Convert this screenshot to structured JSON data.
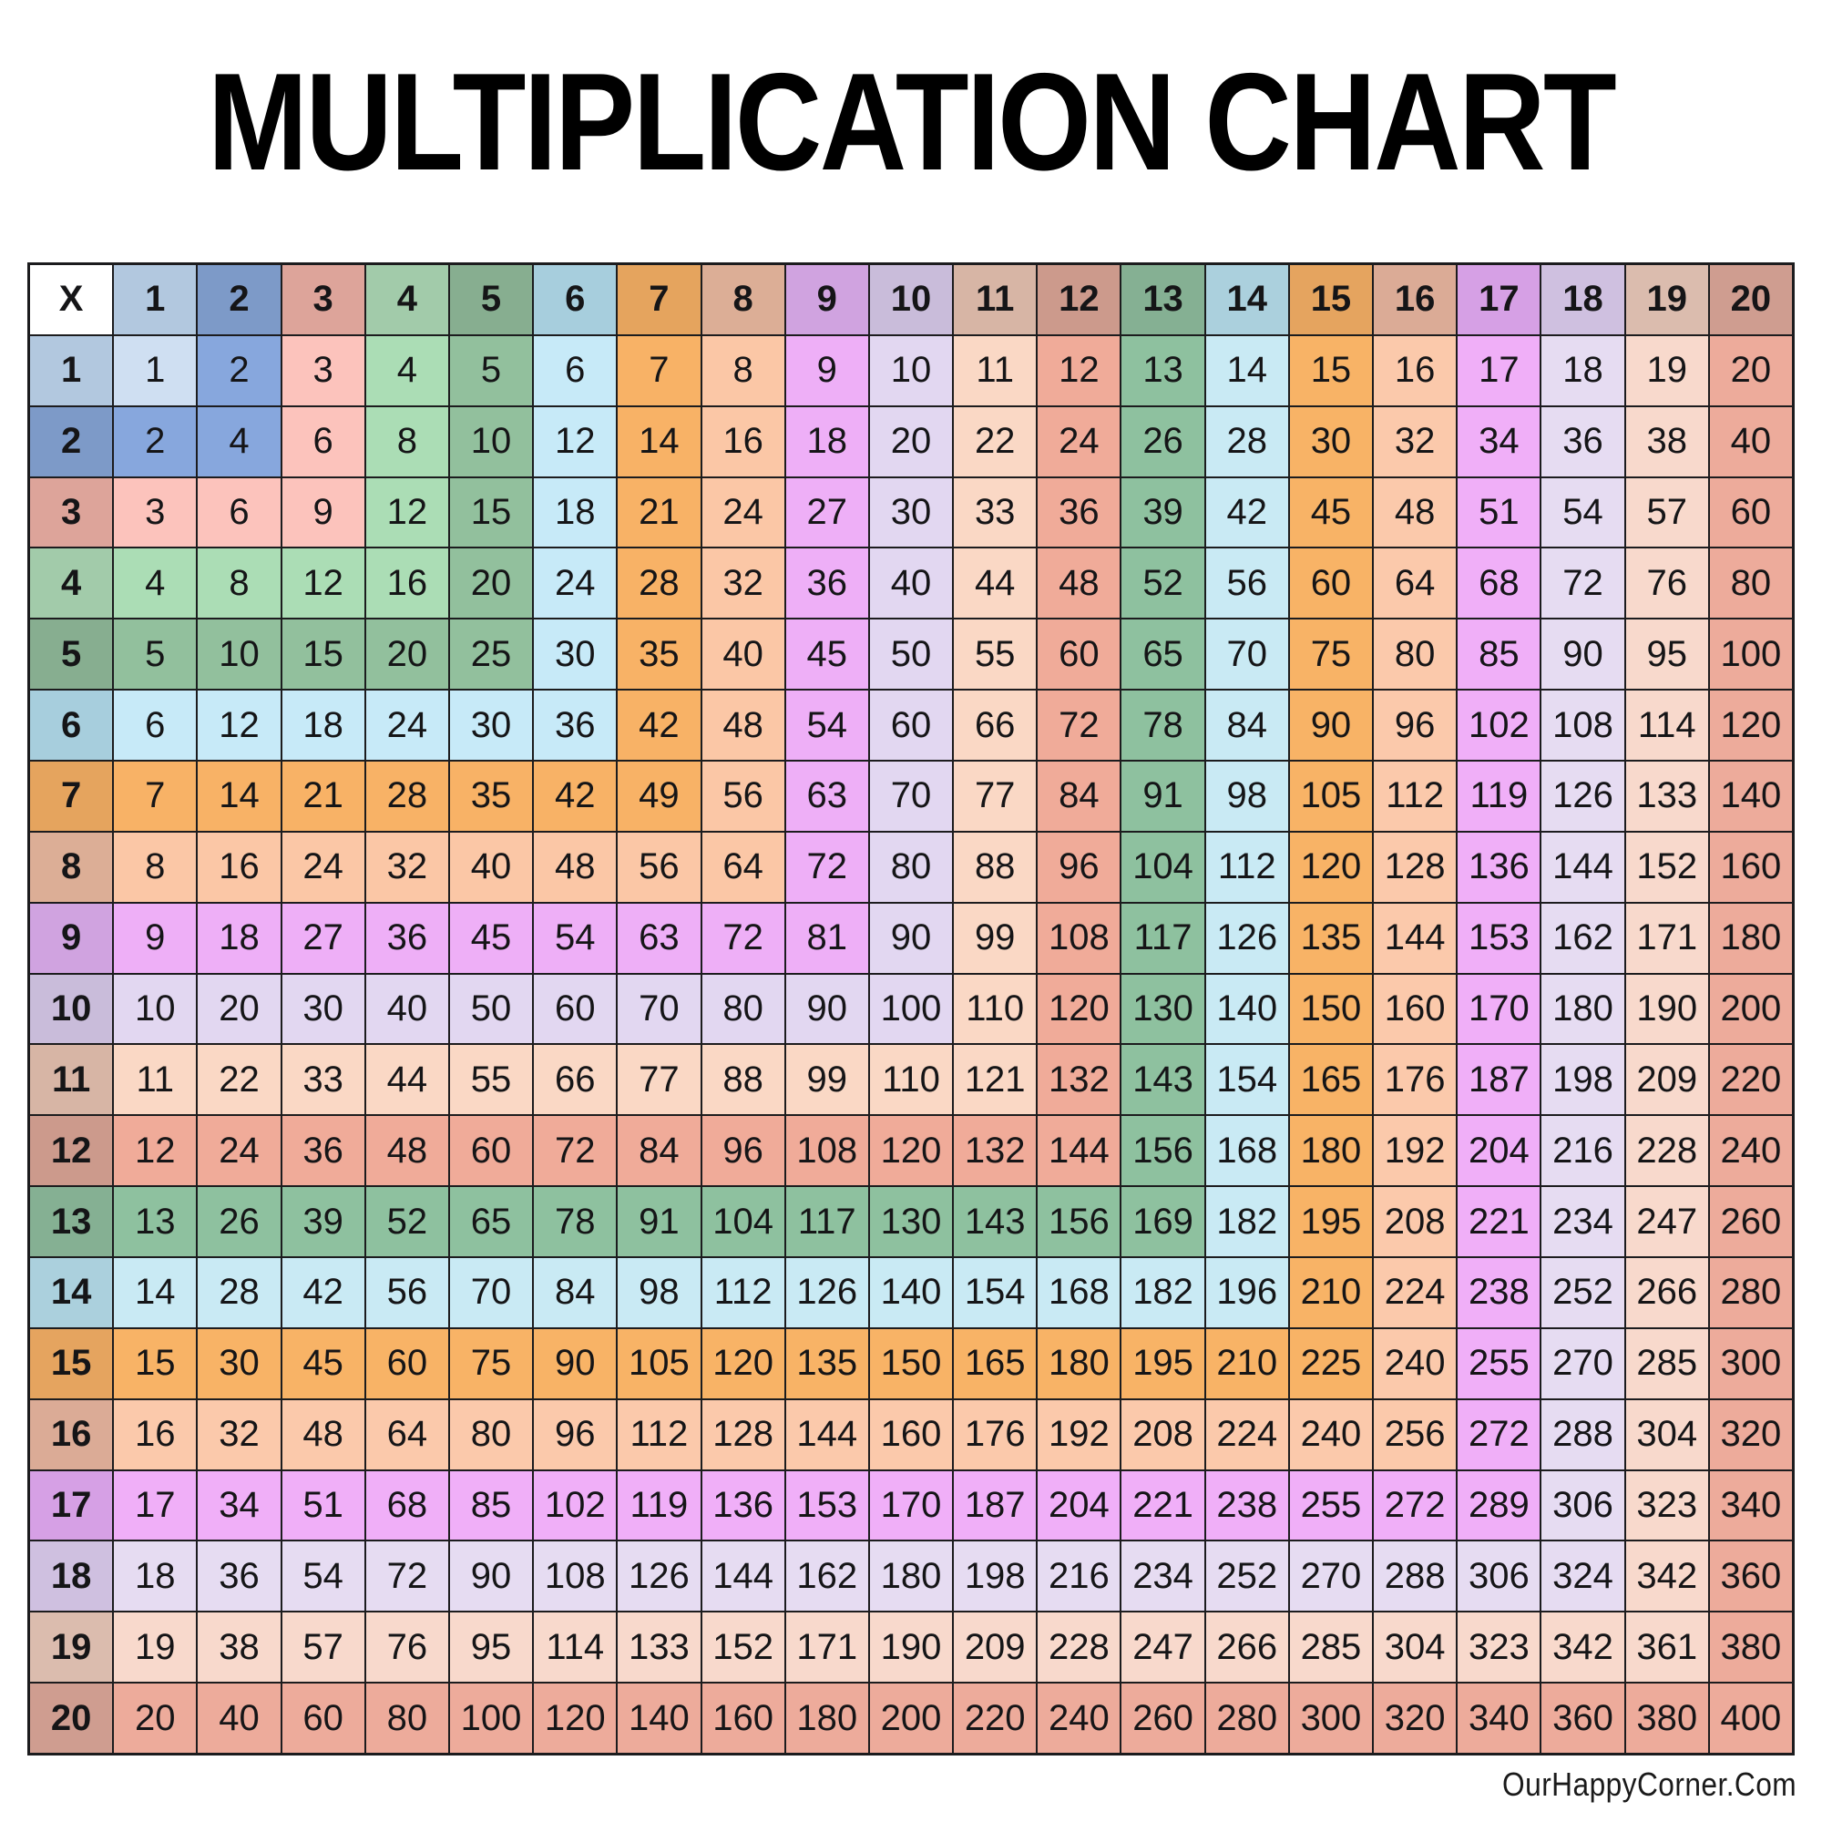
{
  "footer_credit": "OurHappyCorner.Com",
  "chart_data": {
    "type": "table",
    "title": "MULTIPLICATION CHART",
    "corner_label": "X",
    "col_headers": [
      1,
      2,
      3,
      4,
      5,
      6,
      7,
      8,
      9,
      10,
      11,
      12,
      13,
      14,
      15,
      16,
      17,
      18,
      19,
      20
    ],
    "row_headers": [
      1,
      2,
      3,
      4,
      5,
      6,
      7,
      8,
      9,
      10,
      11,
      12,
      13,
      14,
      15,
      16,
      17,
      18,
      19,
      20
    ],
    "rows": [
      [
        1,
        2,
        3,
        4,
        5,
        6,
        7,
        8,
        9,
        10,
        11,
        12,
        13,
        14,
        15,
        16,
        17,
        18,
        19,
        20
      ],
      [
        2,
        4,
        6,
        8,
        10,
        12,
        14,
        16,
        18,
        20,
        22,
        24,
        26,
        28,
        30,
        32,
        34,
        36,
        38,
        40
      ],
      [
        3,
        6,
        9,
        12,
        15,
        18,
        21,
        24,
        27,
        30,
        33,
        36,
        39,
        42,
        45,
        48,
        51,
        54,
        57,
        60
      ],
      [
        4,
        8,
        12,
        16,
        20,
        24,
        28,
        32,
        36,
        40,
        44,
        48,
        52,
        56,
        60,
        64,
        68,
        72,
        76,
        80
      ],
      [
        5,
        10,
        15,
        20,
        25,
        30,
        35,
        40,
        45,
        50,
        55,
        60,
        65,
        70,
        75,
        80,
        85,
        90,
        95,
        100
      ],
      [
        6,
        12,
        18,
        24,
        30,
        36,
        42,
        48,
        54,
        60,
        66,
        72,
        78,
        84,
        90,
        96,
        102,
        108,
        114,
        120
      ],
      [
        7,
        14,
        21,
        28,
        35,
        42,
        49,
        56,
        63,
        70,
        77,
        84,
        91,
        98,
        105,
        112,
        119,
        126,
        133,
        140
      ],
      [
        8,
        16,
        24,
        32,
        40,
        48,
        56,
        64,
        72,
        80,
        88,
        96,
        104,
        112,
        120,
        128,
        136,
        144,
        152,
        160
      ],
      [
        9,
        18,
        27,
        36,
        45,
        54,
        63,
        72,
        81,
        90,
        99,
        108,
        117,
        126,
        135,
        144,
        153,
        162,
        171,
        180
      ],
      [
        10,
        20,
        30,
        40,
        50,
        60,
        70,
        80,
        90,
        100,
        110,
        120,
        130,
        140,
        150,
        160,
        170,
        180,
        190,
        200
      ],
      [
        11,
        22,
        33,
        44,
        55,
        66,
        77,
        88,
        99,
        110,
        121,
        132,
        143,
        154,
        165,
        176,
        187,
        198,
        209,
        220
      ],
      [
        12,
        24,
        36,
        48,
        60,
        72,
        84,
        96,
        108,
        120,
        132,
        144,
        156,
        168,
        180,
        192,
        204,
        216,
        228,
        240
      ],
      [
        13,
        26,
        39,
        52,
        65,
        78,
        91,
        104,
        117,
        130,
        143,
        156,
        169,
        182,
        195,
        208,
        221,
        234,
        247,
        260
      ],
      [
        14,
        28,
        42,
        56,
        70,
        84,
        98,
        112,
        126,
        140,
        154,
        168,
        182,
        196,
        210,
        224,
        238,
        252,
        266,
        280
      ],
      [
        15,
        30,
        45,
        60,
        75,
        90,
        105,
        120,
        135,
        150,
        165,
        180,
        195,
        210,
        225,
        240,
        255,
        270,
        285,
        300
      ],
      [
        16,
        32,
        48,
        64,
        80,
        96,
        112,
        128,
        144,
        160,
        176,
        192,
        208,
        224,
        240,
        256,
        272,
        288,
        304,
        320
      ],
      [
        17,
        34,
        51,
        68,
        85,
        102,
        119,
        136,
        153,
        170,
        187,
        204,
        221,
        238,
        255,
        272,
        289,
        306,
        323,
        340
      ],
      [
        18,
        36,
        54,
        72,
        90,
        108,
        126,
        144,
        162,
        180,
        198,
        216,
        234,
        252,
        270,
        288,
        306,
        324,
        342,
        360
      ],
      [
        19,
        38,
        57,
        76,
        95,
        114,
        133,
        152,
        171,
        190,
        209,
        228,
        247,
        266,
        285,
        304,
        323,
        342,
        361,
        380
      ],
      [
        20,
        40,
        60,
        80,
        100,
        120,
        140,
        160,
        180,
        200,
        220,
        240,
        260,
        280,
        300,
        320,
        340,
        360,
        380,
        400
      ]
    ],
    "color_rule": "cell background = palette[max(row_header, col_header)]; header cells use 'header' shade, product cells use 'body' shade",
    "palette": [
      {
        "n": 1,
        "header": "#b2c8df",
        "body": "#cfdff2"
      },
      {
        "n": 2,
        "header": "#7d9ac8",
        "body": "#87a7dd"
      },
      {
        "n": 3,
        "header": "#dda49a",
        "body": "#fcc3bc"
      },
      {
        "n": 4,
        "header": "#a2cbaa",
        "body": "#abddb5"
      },
      {
        "n": 5,
        "header": "#87ae90",
        "body": "#92c09d"
      },
      {
        "n": 6,
        "header": "#a7cedd",
        "body": "#c7eaf8"
      },
      {
        "n": 7,
        "header": "#e5a45e",
        "body": "#f8b266"
      },
      {
        "n": 8,
        "header": "#dcae96",
        "body": "#fbc7a6"
      },
      {
        "n": 9,
        "header": "#d0a3e0",
        "body": "#eeaff7"
      },
      {
        "n": 10,
        "header": "#c9bcda",
        "body": "#e2d7f1"
      },
      {
        "n": 11,
        "header": "#d7b5a5",
        "body": "#fad8c5"
      },
      {
        "n": 12,
        "header": "#cc9a8c",
        "body": "#f0ab99"
      },
      {
        "n": 13,
        "header": "#85b093",
        "body": "#8ec19f"
      },
      {
        "n": 14,
        "header": "#abd0dd",
        "body": "#c9eaf4"
      },
      {
        "n": 15,
        "header": "#e5a45f",
        "body": "#f8b366"
      },
      {
        "n": 16,
        "header": "#dbab96",
        "body": "#fbc9ab"
      },
      {
        "n": 17,
        "header": "#d6a0e5",
        "body": "#f0aff8"
      },
      {
        "n": 18,
        "header": "#cfc0e0",
        "body": "#e6dcf2"
      },
      {
        "n": 19,
        "header": "#dbbcae",
        "body": "#f8d9cc"
      },
      {
        "n": 20,
        "header": "#cf9d90",
        "body": "#edab9b"
      }
    ],
    "corner_bg": "#ffffff",
    "grid_line_color": "#1c1c1e",
    "text_color": "#151517"
  }
}
